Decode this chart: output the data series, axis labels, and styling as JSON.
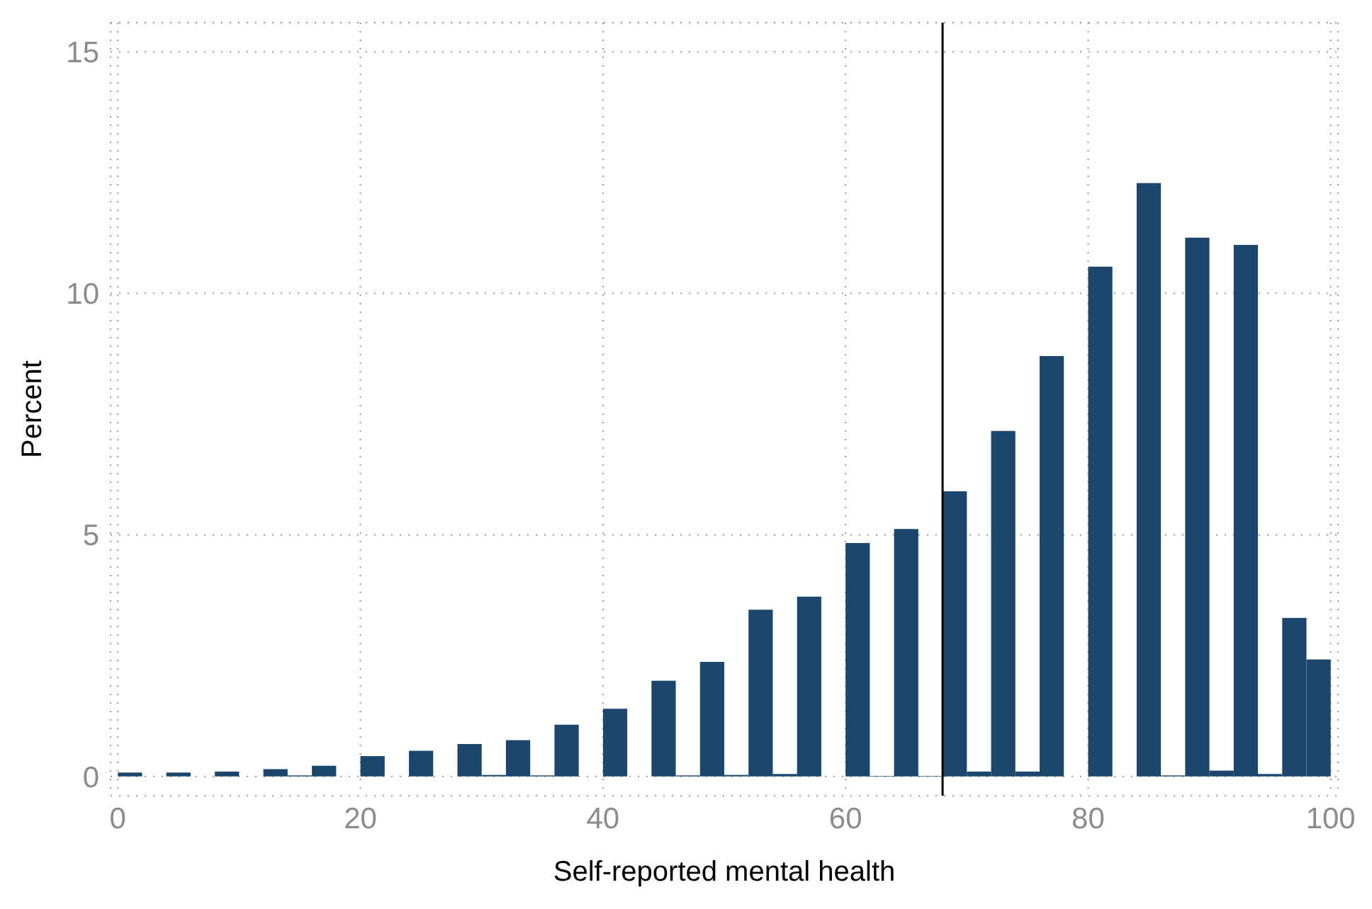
{
  "chart_data": {
    "type": "histogram",
    "xlabel": "Self-reported mental health",
    "ylabel": "Percent",
    "bins": [
      0,
      2,
      4,
      6,
      8,
      10,
      12,
      14,
      16,
      18,
      20,
      22,
      24,
      26,
      28,
      30,
      32,
      34,
      36,
      38,
      40,
      42,
      44,
      46,
      48,
      50,
      52,
      54,
      56,
      58,
      60,
      62,
      64,
      66,
      68,
      70,
      72,
      74,
      76,
      78,
      80,
      82,
      84,
      86,
      88,
      90,
      92,
      94,
      96,
      98,
      100
    ],
    "values": [
      0.08,
      0,
      0.08,
      0,
      0.1,
      0,
      0.15,
      0.02,
      0.22,
      0,
      0.42,
      0,
      0.53,
      0,
      0.67,
      0.03,
      0.75,
      0.02,
      1.07,
      0,
      1.4,
      0,
      1.98,
      0.02,
      2.37,
      0.03,
      3.45,
      0.05,
      3.72,
      0,
      4.83,
      0.01,
      5.12,
      0.01,
      5.9,
      0.1,
      7.15,
      0.1,
      8.7,
      0,
      10.55,
      0,
      12.28,
      0.02,
      11.15,
      0.12,
      11.0,
      0.05,
      3.28,
      2.42
    ],
    "color": "#1b476f",
    "xlim": [
      -0.6,
      100.6
    ],
    "xticks": [
      0,
      20,
      40,
      60,
      80,
      100
    ],
    "ylim": [
      -0.4,
      15.6
    ],
    "yticks": [
      0,
      5,
      10,
      15
    ],
    "grid": true,
    "ref_lines": [
      {
        "axis": "x",
        "value": 68,
        "color": "#000000"
      }
    ]
  }
}
